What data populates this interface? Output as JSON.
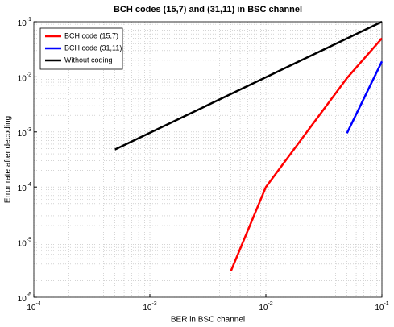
{
  "chart_data": {
    "type": "line",
    "title": "BCH codes (15,7) and (31,11) in BSC channel",
    "x_label": "BER in BSC channel",
    "y_label": "Error rate after decoding",
    "x_scale": "log",
    "y_scale": "log",
    "xlim": [
      0.0001,
      0.1
    ],
    "ylim": [
      1e-06,
      0.1
    ],
    "xticks": [
      {
        "value": 0.0001,
        "label": "10",
        "exponent": "-4"
      },
      {
        "value": 0.001,
        "label": "10",
        "exponent": "-3"
      },
      {
        "value": 0.01,
        "label": "10",
        "exponent": "-2"
      },
      {
        "value": 0.1,
        "label": "10",
        "exponent": "-1"
      }
    ],
    "yticks": [
      {
        "value": 1e-06,
        "label": "10",
        "exponent": "-6"
      },
      {
        "value": 1e-05,
        "label": "10",
        "exponent": "-5"
      },
      {
        "value": 0.0001,
        "label": "10",
        "exponent": "-4"
      },
      {
        "value": 0.001,
        "label": "10",
        "exponent": "-3"
      },
      {
        "value": 0.01,
        "label": "10",
        "exponent": "-2"
      },
      {
        "value": 0.1,
        "label": "10",
        "exponent": "-1"
      }
    ],
    "grid": true,
    "legend": "upper-left",
    "series": [
      {
        "name": "BCH code (15,7)",
        "color": "#ff0000",
        "x": [
          0.005,
          0.01,
          0.05,
          0.1
        ],
        "values": [
          3e-06,
          0.0001,
          0.0095,
          0.05
        ]
      },
      {
        "name": "BCH code (31,11)",
        "color": "#0000ff",
        "x": [
          0.05,
          0.1
        ],
        "values": [
          0.00095,
          0.019
        ]
      },
      {
        "name": "Without coding",
        "color": "#000000",
        "x": [
          0.0005,
          0.1
        ],
        "values": [
          0.00048,
          0.1
        ]
      }
    ]
  }
}
